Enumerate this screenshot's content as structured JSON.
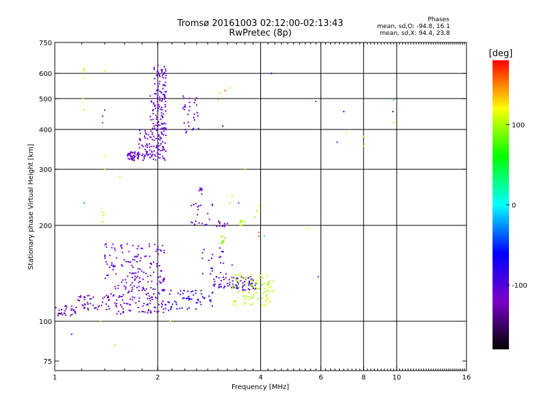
{
  "chart_data": {
    "type": "scatter",
    "title": "Tromsø 20161003 02:12:00-02:13:43",
    "subtitle": "RwPretec (8p)",
    "xlabel": "Frequency [MHz]",
    "ylabel": "Stationary phase Virtual Height [km]",
    "x_scale": "log",
    "y_scale": "log",
    "xlim": [
      1,
      16
    ],
    "ylim": [
      70,
      750
    ],
    "x_ticks": [
      1,
      2,
      4,
      6,
      8,
      10,
      16
    ],
    "x_tick_labels": [
      "1",
      "2",
      "4",
      "6",
      "8",
      "10",
      "16"
    ],
    "x_gridlines": [
      2,
      4,
      6,
      8,
      10
    ],
    "y_ticks": [
      75,
      100,
      200,
      300,
      400,
      500,
      600,
      750
    ],
    "y_tick_labels": [
      "75",
      "100",
      "200",
      "300",
      "400",
      "500",
      "600",
      "750"
    ],
    "y_gridlines": [
      100,
      200,
      300,
      400,
      500,
      600
    ],
    "grid": true,
    "colorbar": {
      "label": "[deg]",
      "range": [
        -180,
        180
      ],
      "ticks": [
        100,
        0,
        -100
      ],
      "tick_labels": [
        "100",
        "0",
        "-100"
      ],
      "colormap": [
        "#000000",
        "#7a00c8",
        "#0000ff",
        "#00ffff",
        "#00ff00",
        "#ffff00",
        "#ff0000"
      ]
    },
    "annotations": {
      "header": "Phases",
      "o_mode": "mean, sd,O: -94.8, 16.1",
      "x_mode": "mean, sd,X:  94.4, 23.8"
    },
    "clusters": [
      {
        "f": [
          1.63,
          1.76
        ],
        "h": [
          320,
          340
        ],
        "phase": -110,
        "n": 45
      },
      {
        "f": [
          1.76,
          2.12
        ],
        "h": [
          320,
          400
        ],
        "phase": -110,
        "n": 110
      },
      {
        "f": [
          1.9,
          2.12
        ],
        "h": [
          400,
          520
        ],
        "phase": -110,
        "n": 80
      },
      {
        "f": [
          1.95,
          2.12
        ],
        "h": [
          520,
          640
        ],
        "phase": -105,
        "n": 45
      },
      {
        "f": [
          2.35,
          2.65
        ],
        "h": [
          390,
          510
        ],
        "phase": -100,
        "n": 30
      },
      {
        "f": [
          2.6,
          2.7
        ],
        "h": [
          250,
          262
        ],
        "phase": -120,
        "n": 8
      },
      {
        "f": [
          2.5,
          2.9
        ],
        "h": [
          200,
          235
        ],
        "phase": -115,
        "n": 20
      },
      {
        "f": [
          2.95,
          3.2
        ],
        "h": [
          198,
          206
        ],
        "phase": -125,
        "n": 12
      },
      {
        "f": [
          3.05,
          3.15
        ],
        "h": [
          175,
          185
        ],
        "phase": 90,
        "n": 10
      },
      {
        "f": [
          3.48,
          3.6
        ],
        "h": [
          200,
          208
        ],
        "phase": 100,
        "n": 10
      },
      {
        "f": [
          1.0,
          1.15
        ],
        "h": [
          104,
          112
        ],
        "phase": -125,
        "n": 30
      },
      {
        "f": [
          1.15,
          1.5
        ],
        "h": [
          108,
          122
        ],
        "phase": -120,
        "n": 50
      },
      {
        "f": [
          1.5,
          2.1
        ],
        "h": [
          105,
          118
        ],
        "phase": -115,
        "n": 60
      },
      {
        "f": [
          1.5,
          2.1
        ],
        "h": [
          118,
          135
        ],
        "phase": -110,
        "n": 70
      },
      {
        "f": [
          1.4,
          2.1
        ],
        "h": [
          135,
          175
        ],
        "phase": -110,
        "n": 110
      },
      {
        "f": [
          2.1,
          2.9
        ],
        "h": [
          108,
          125
        ],
        "phase": -80,
        "n": 60
      },
      {
        "f": [
          2.9,
          3.9
        ],
        "h": [
          125,
          138
        ],
        "phase": -95,
        "n": 80
      },
      {
        "f": [
          3.3,
          4.4
        ],
        "h": [
          112,
          140
        ],
        "phase": 100,
        "n": 90
      },
      {
        "f": [
          2.7,
          3.2
        ],
        "h": [
          140,
          170
        ],
        "phase": -100,
        "n": 20
      }
    ],
    "points": [
      {
        "f": 1.22,
        "h": 620,
        "phase": 100
      },
      {
        "f": 1.22,
        "h": 612,
        "phase": 100
      },
      {
        "f": 1.22,
        "h": 580,
        "phase": 110
      },
      {
        "f": 1.21,
        "h": 500,
        "phase": 110
      },
      {
        "f": 1.22,
        "h": 460,
        "phase": 100
      },
      {
        "f": 1.4,
        "h": 610,
        "phase": 105
      },
      {
        "f": 1.4,
        "h": 460,
        "phase": -120
      },
      {
        "f": 1.38,
        "h": 440,
        "phase": -130
      },
      {
        "f": 1.38,
        "h": 420,
        "phase": 170
      },
      {
        "f": 1.4,
        "h": 330,
        "phase": 110
      },
      {
        "f": 1.4,
        "h": 300,
        "phase": 100
      },
      {
        "f": 1.22,
        "h": 235,
        "phase": -30
      },
      {
        "f": 1.38,
        "h": 220,
        "phase": 100
      },
      {
        "f": 1.39,
        "h": 215,
        "phase": 100
      },
      {
        "f": 1.38,
        "h": 205,
        "phase": 100
      },
      {
        "f": 1.55,
        "h": 285,
        "phase": 100
      },
      {
        "f": 1.36,
        "h": 100,
        "phase": 110
      },
      {
        "f": 1.12,
        "h": 91,
        "phase": -120
      },
      {
        "f": 1.5,
        "h": 84,
        "phase": 130
      },
      {
        "f": 2.18,
        "h": 100,
        "phase": 120
      },
      {
        "f": 3.0,
        "h": 495,
        "phase": 100
      },
      {
        "f": 3.05,
        "h": 520,
        "phase": 100
      },
      {
        "f": 3.15,
        "h": 530,
        "phase": 160
      },
      {
        "f": 3.25,
        "h": 540,
        "phase": 100
      },
      {
        "f": 3.1,
        "h": 410,
        "phase": -140
      },
      {
        "f": 4.3,
        "h": 600,
        "phase": -60
      },
      {
        "f": 5.8,
        "h": 490,
        "phase": -40
      },
      {
        "f": 6.7,
        "h": 365,
        "phase": -120
      },
      {
        "f": 7.0,
        "h": 455,
        "phase": -80
      },
      {
        "f": 7.1,
        "h": 390,
        "phase": 120
      },
      {
        "f": 8.0,
        "h": 380,
        "phase": 110
      },
      {
        "f": 8.0,
        "h": 355,
        "phase": 130
      },
      {
        "f": 9.8,
        "h": 495,
        "phase": 40
      },
      {
        "f": 9.75,
        "h": 455,
        "phase": -130
      },
      {
        "f": 9.8,
        "h": 420,
        "phase": 100
      },
      {
        "f": 3.6,
        "h": 300,
        "phase": 100
      },
      {
        "f": 3.95,
        "h": 230,
        "phase": 120
      },
      {
        "f": 3.9,
        "h": 222,
        "phase": 100
      },
      {
        "f": 3.85,
        "h": 212,
        "phase": 100
      },
      {
        "f": 3.95,
        "h": 190,
        "phase": 160
      },
      {
        "f": 3.95,
        "h": 185,
        "phase": 170
      },
      {
        "f": 4.1,
        "h": 185,
        "phase": 30
      },
      {
        "f": 5.5,
        "h": 195,
        "phase": 120
      },
      {
        "f": 5.9,
        "h": 138,
        "phase": -40
      },
      {
        "f": 3.3,
        "h": 248,
        "phase": 100
      },
      {
        "f": 3.25,
        "h": 235,
        "phase": 100
      },
      {
        "f": 3.45,
        "h": 235,
        "phase": -40
      },
      {
        "f": 3.3,
        "h": 150,
        "phase": -110
      }
    ]
  }
}
